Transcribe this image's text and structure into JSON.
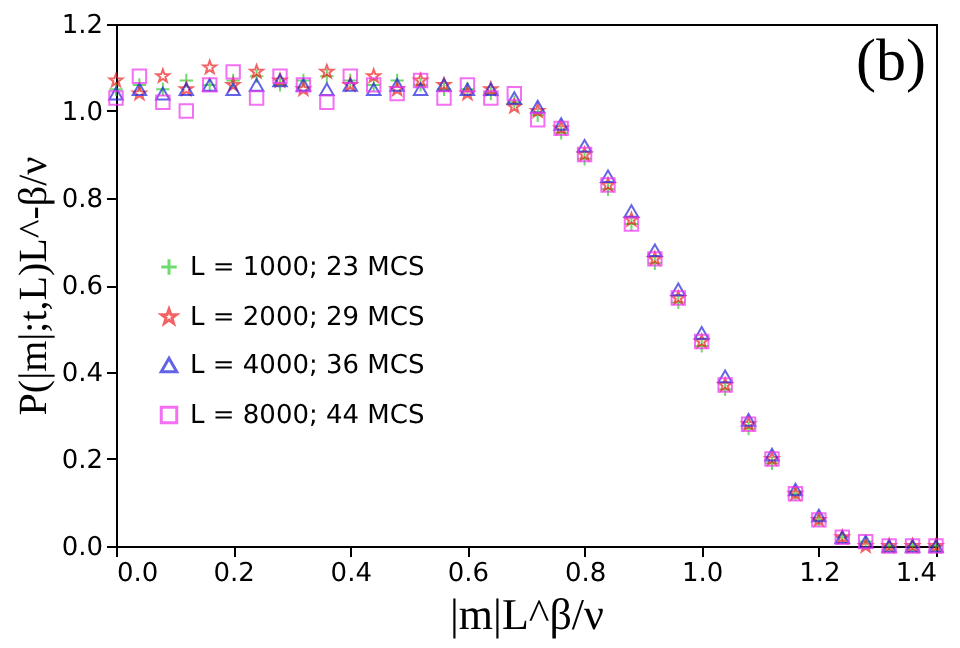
{
  "chart_data": {
    "type": "scatter",
    "xlabel": "|m|L^β/ν",
    "ylabel": "P(|m|;t,L)L^-β/ν",
    "annotations": [
      "(b)"
    ],
    "x": [
      0.0,
      0.04,
      0.08,
      0.12,
      0.16,
      0.2,
      0.24,
      0.28,
      0.32,
      0.36,
      0.4,
      0.44,
      0.48,
      0.52,
      0.56,
      0.6,
      0.64,
      0.68,
      0.72,
      0.76,
      0.8,
      0.84,
      0.88,
      0.92,
      0.96,
      1.0,
      1.04,
      1.08,
      1.12,
      1.16,
      1.2,
      1.24,
      1.28,
      1.32,
      1.36,
      1.4
    ],
    "series": [
      {
        "name": "L = 1000; 23 MCS",
        "color": "#33cc33",
        "marker": "cross",
        "values": [
          1.05,
          1.06,
          1.05,
          1.07,
          1.06,
          1.07,
          1.08,
          1.06,
          1.07,
          1.08,
          1.07,
          1.06,
          1.07,
          1.06,
          1.05,
          1.05,
          1.04,
          1.02,
          0.99,
          0.95,
          0.89,
          0.82,
          0.74,
          0.65,
          0.56,
          0.46,
          0.36,
          0.27,
          0.19,
          0.12,
          0.06,
          0.02,
          0.01,
          0.0,
          0.0,
          0.0
        ]
      },
      {
        "name": "L = 2000; 29 MCS",
        "color": "#ee2222",
        "marker": "star",
        "values": [
          1.07,
          1.04,
          1.08,
          1.05,
          1.1,
          1.06,
          1.09,
          1.07,
          1.05,
          1.09,
          1.06,
          1.08,
          1.05,
          1.07,
          1.06,
          1.04,
          1.05,
          1.01,
          1.0,
          0.96,
          0.9,
          0.83,
          0.75,
          0.66,
          0.57,
          0.47,
          0.37,
          0.28,
          0.2,
          0.12,
          0.06,
          0.02,
          0.0,
          0.0,
          0.0,
          0.0
        ]
      },
      {
        "name": "L = 4000; 36 MCS",
        "color": "#2222dd",
        "marker": "triangle",
        "values": [
          1.04,
          1.05,
          1.04,
          1.05,
          1.06,
          1.05,
          1.06,
          1.07,
          1.06,
          1.05,
          1.06,
          1.05,
          1.06,
          1.05,
          1.06,
          1.05,
          1.05,
          1.03,
          1.01,
          0.97,
          0.92,
          0.85,
          0.77,
          0.68,
          0.59,
          0.49,
          0.39,
          0.29,
          0.21,
          0.13,
          0.07,
          0.02,
          0.01,
          0.0,
          0.0,
          0.0
        ]
      },
      {
        "name": "L = 8000; 44 MCS",
        "color": "#ee33ee",
        "marker": "square",
        "values": [
          1.03,
          1.08,
          1.02,
          1.0,
          1.06,
          1.09,
          1.03,
          1.08,
          1.06,
          1.02,
          1.08,
          1.06,
          1.04,
          1.07,
          1.03,
          1.06,
          1.03,
          1.04,
          0.98,
          0.96,
          0.9,
          0.83,
          0.74,
          0.66,
          0.57,
          0.47,
          0.37,
          0.28,
          0.2,
          0.12,
          0.06,
          0.02,
          0.01,
          0.0,
          0.0,
          0.0
        ]
      }
    ],
    "xlim": [
      0,
      1.4
    ],
    "ylim": [
      0,
      1.2
    ],
    "xticks": [
      {
        "value": 0,
        "label": "0.0"
      },
      {
        "value": 0.2,
        "label": "0.2"
      },
      {
        "value": 0.4,
        "label": "0.4"
      },
      {
        "value": 0.6,
        "label": "0.6"
      },
      {
        "value": 0.8,
        "label": "0.8"
      },
      {
        "value": 1.0,
        "label": "1.0"
      },
      {
        "value": 1.2,
        "label": "1.2"
      },
      {
        "value": 1.4,
        "label": "1.4"
      }
    ],
    "yticks": [
      {
        "value": 0,
        "label": "0.0"
      },
      {
        "value": 0.2,
        "label": "0.2"
      },
      {
        "value": 0.4,
        "label": "0.4"
      },
      {
        "value": 0.6,
        "label": "0.6"
      },
      {
        "value": 0.8,
        "label": "0.8"
      },
      {
        "value": 1.0,
        "label": "1.0"
      },
      {
        "value": 1.2,
        "label": "1.2"
      }
    ],
    "legend": "left",
    "grid": false
  }
}
